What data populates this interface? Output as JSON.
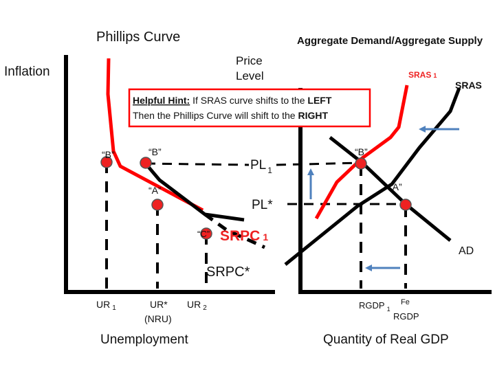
{
  "titles": {
    "phillips": "Phillips Curve",
    "adas": "Aggregate Demand/Aggregate Supply"
  },
  "axes": {
    "inflation": "Inflation",
    "price_level_line1": "Price",
    "price_level_line2": "Level",
    "unemployment": "Unemployment",
    "real_gdp": "Quantity of Real GDP"
  },
  "hint": {
    "label": "Helpful Hint:",
    "line1_text": "  If SRAS curve shifts to the ",
    "line1_bold": "LEFT",
    "line2_text": "Then the Phillips Curve will shift to the ",
    "line2_bold": "RIGHT"
  },
  "left_panel": {
    "point_b_left": "“B”",
    "point_b": "“B”",
    "point_a": "“A”",
    "point_c": "“C”",
    "srpc1_main": "SRPC",
    "srpc1_sub": "1",
    "srpc_star": "SRPC*",
    "ur1_main": "UR",
    "ur1_sub": "1",
    "ur_star": "UR*",
    "nru": "(NRU)",
    "ur2_main": "UR",
    "ur2_sub": "2"
  },
  "right_panel": {
    "pl1_main": "PL",
    "pl1_sub": "1",
    "pl_star": "PL*",
    "point_b": "“B”",
    "point_a": "“A”",
    "sras1_main": "SRAS",
    "sras1_sub": "1",
    "sras": "SRAS",
    "ad": "AD",
    "rgdp1_main": "RGDP",
    "rgdp1_sub": "1",
    "rgdp_fe_sup": "Fe",
    "rgdp_fe_main": "RGDP"
  },
  "colors": {
    "axis": "#000000",
    "shifted_curve": "#ff0000",
    "point": "#ee2222",
    "arrow": "#4f81bd",
    "hint_border": "#ff0000"
  }
}
